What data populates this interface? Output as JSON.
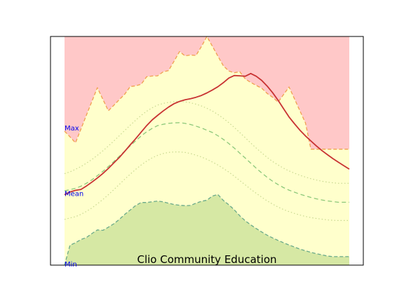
{
  "chart_data": {
    "type": "area",
    "title": "Clio Community Education",
    "xlabel": "",
    "ylabel": "",
    "xlim": [
      0,
      52
    ],
    "ylim": [
      0,
      100
    ],
    "grid": false,
    "legend": "none",
    "band_labels": {
      "max": "Max",
      "mean": "Mean",
      "min": "Min"
    },
    "colors": {
      "above_max_fill": "#ffc8c8",
      "normal_band_fill": "#ffffcc",
      "below_min_fill": "#d6e8a4",
      "max_line": "#f0a050",
      "min_line": "#6aaa8a",
      "mean_line": "#8cc87a",
      "std_line": "#c8d890",
      "current_line": "#c83232",
      "label_text": "#0000ee",
      "title_text": "#000000",
      "frame": "#000000"
    },
    "x": [
      0,
      1,
      2,
      3,
      4,
      5,
      6,
      7,
      8,
      9,
      10,
      11,
      12,
      13,
      14,
      15,
      16,
      17,
      18,
      19,
      20,
      21,
      22,
      23,
      24,
      25,
      26,
      27,
      28,
      29,
      30,
      31,
      32,
      33,
      34,
      35,
      36,
      37,
      38,
      39,
      40,
      41,
      42,
      43,
      44,
      45,
      46,
      47,
      48,
      49,
      50,
      51,
      52
    ],
    "series": [
      {
        "key": "max",
        "style": "dashed",
        "values": [
          58.6,
          56.1,
          53.5,
          59.5,
          65.6,
          71.6,
          77.6,
          72.5,
          67.5,
          69.9,
          72.4,
          74.8,
          78.1,
          78.4,
          79.1,
          82.4,
          82.7,
          82.8,
          84.5,
          85.1,
          89.2,
          93.4,
          91.5,
          91.9,
          91.7,
          95.6,
          100.0,
          95.7,
          91.4,
          87.2,
          84.9,
          84.1,
          84.6,
          81.4,
          79.9,
          78.6,
          77.4,
          75.1,
          73.4,
          71.3,
          74.6,
          77.9,
          72.7,
          67.4,
          62.2,
          50.7,
          50.7,
          50.7,
          50.7,
          50.7,
          50.7,
          50.7,
          50.7
        ]
      },
      {
        "key": "min",
        "style": "dashed",
        "values": [
          0.0,
          8.7,
          9.8,
          11.2,
          12.1,
          13.8,
          15.4,
          15.2,
          16.6,
          18.1,
          20.0,
          22.2,
          24.1,
          26.1,
          27.4,
          27.4,
          27.7,
          28.0,
          27.7,
          27.1,
          26.5,
          26.2,
          26.0,
          26.1,
          27.1,
          27.9,
          28.4,
          30.2,
          30.9,
          28.3,
          26.4,
          24.2,
          21.6,
          19.4,
          17.6,
          16.0,
          14.5,
          13.1,
          11.9,
          10.8,
          9.8,
          8.8,
          7.9,
          7.0,
          6.3,
          5.6,
          5.0,
          4.5,
          4.0,
          3.7,
          3.7,
          3.7,
          3.7
        ]
      },
      {
        "key": "mean",
        "style": "dashed",
        "values": [
          32.5,
          33.0,
          33.6,
          34.5,
          35.8,
          37.3,
          39.1,
          41.0,
          43.1,
          45.3,
          47.6,
          49.9,
          52.2,
          54.4,
          56.5,
          58.3,
          59.8,
          61.0,
          61.6,
          62.0,
          62.2,
          62.3,
          62.0,
          61.5,
          60.8,
          60.0,
          59.0,
          58.0,
          56.6,
          55.0,
          53.2,
          51.2,
          49.0,
          46.8,
          44.6,
          42.4,
          40.3,
          38.4,
          36.7,
          35.2,
          33.9,
          32.8,
          31.9,
          31.0,
          30.3,
          29.6,
          29.0,
          28.5,
          28.1,
          27.8,
          27.5,
          27.5,
          27.5
        ]
      },
      {
        "key": "mean_plus_std",
        "style": "dotted",
        "values": [
          40.0,
          40.8,
          41.9,
          43.1,
          44.6,
          46.2,
          48.0,
          50.0,
          52.1,
          54.3,
          56.6,
          58.9,
          61.2,
          63.4,
          65.5,
          67.3,
          68.8,
          70.0,
          70.7,
          71.2,
          71.5,
          71.6,
          71.4,
          71.0,
          70.4,
          69.6,
          68.6,
          67.4,
          65.9,
          64.2,
          62.3,
          60.2,
          58.0,
          55.7,
          53.4,
          51.2,
          49.1,
          47.1,
          45.3,
          43.8,
          42.4,
          41.2,
          40.2,
          39.3,
          38.5,
          37.8,
          37.2,
          36.7,
          36.3,
          36.0,
          35.8,
          35.8,
          35.8
        ]
      },
      {
        "key": "mean_minus_std",
        "style": "dotted",
        "values": [
          20.0,
          20.6,
          21.2,
          22.2,
          23.5,
          25.0,
          26.8,
          28.7,
          30.8,
          33.0,
          35.3,
          37.6,
          39.8,
          41.9,
          43.8,
          45.5,
          46.9,
          48.0,
          48.8,
          49.3,
          49.5,
          49.5,
          49.3,
          48.8,
          48.1,
          47.3,
          46.3,
          45.1,
          43.8,
          42.3,
          40.7,
          38.9,
          37.0,
          35.1,
          33.2,
          31.4,
          29.7,
          28.1,
          26.7,
          25.4,
          24.3,
          23.4,
          22.6,
          21.9,
          21.3,
          20.8,
          20.4,
          20.1,
          19.8,
          19.6,
          19.5,
          19.5,
          19.5
        ]
      },
      {
        "key": "current",
        "style": "solid",
        "values": [
          30.8,
          32.0,
          32.7,
          33.1,
          34.6,
          36.3,
          38.1,
          40.1,
          42.3,
          44.7,
          47.1,
          49.8,
          52.6,
          55.3,
          58.2,
          61.0,
          63.5,
          65.5,
          67.4,
          69.1,
          70.6,
          71.6,
          72.3,
          72.8,
          73.4,
          74.2,
          75.3,
          76.6,
          78.0,
          79.8,
          81.8,
          82.9,
          82.8,
          82.6,
          83.8,
          82.6,
          80.8,
          78.3,
          75.4,
          72.1,
          68.4,
          64.8,
          61.8,
          59.0,
          56.5,
          54.3,
          52.1,
          50.1,
          48.3,
          46.6,
          45.0,
          43.5,
          42.0
        ]
      }
    ]
  }
}
